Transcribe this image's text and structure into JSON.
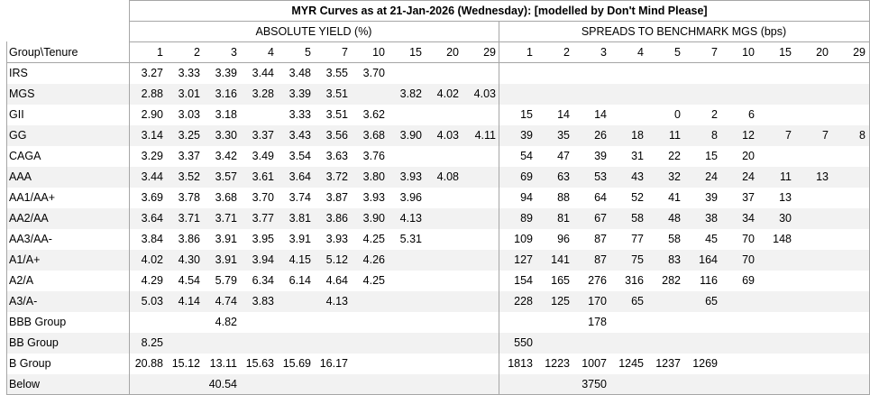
{
  "title": "MYR Curves as at 21-Jan-2026 (Wednesday): [modelled by Don't Mind Please]",
  "corner_label": "Group\\Tenure",
  "section_yield": "ABSOLUTE YIELD (%)",
  "section_spread": "SPREADS TO BENCHMARK MGS (bps)",
  "yield_tenures": [
    "1",
    "2",
    "3",
    "4",
    "5",
    "7",
    "10",
    "15",
    "20",
    "29"
  ],
  "spread_tenures": [
    "1",
    "2",
    "3",
    "4",
    "5",
    "7",
    "10",
    "15",
    "20",
    "29"
  ],
  "rows": [
    {
      "group": "IRS",
      "yield": [
        "3.27",
        "3.33",
        "3.39",
        "3.44",
        "3.48",
        "3.55",
        "3.70",
        "",
        "",
        ""
      ],
      "spread": [
        "",
        "",
        "",
        "",
        "",
        "",
        "",
        "",
        "",
        ""
      ]
    },
    {
      "group": "MGS",
      "yield": [
        "2.88",
        "3.01",
        "3.16",
        "3.28",
        "3.39",
        "3.51",
        "",
        "3.82",
        "4.02",
        "4.03"
      ],
      "spread": [
        "",
        "",
        "",
        "",
        "",
        "",
        "",
        "",
        "",
        ""
      ]
    },
    {
      "group": "GII",
      "yield": [
        "2.90",
        "3.03",
        "3.18",
        "",
        "3.33",
        "3.51",
        "3.62",
        "",
        "",
        ""
      ],
      "spread": [
        "15",
        "14",
        "14",
        "",
        "0",
        "2",
        "6",
        "",
        "",
        ""
      ]
    },
    {
      "group": "GG",
      "yield": [
        "3.14",
        "3.25",
        "3.30",
        "3.37",
        "3.43",
        "3.56",
        "3.68",
        "3.90",
        "4.03",
        "4.11"
      ],
      "spread": [
        "39",
        "35",
        "26",
        "18",
        "11",
        "8",
        "12",
        "7",
        "7",
        "8"
      ]
    },
    {
      "group": "CAGA",
      "yield": [
        "3.29",
        "3.37",
        "3.42",
        "3.49",
        "3.54",
        "3.63",
        "3.76",
        "",
        "",
        ""
      ],
      "spread": [
        "54",
        "47",
        "39",
        "31",
        "22",
        "15",
        "20",
        "",
        "",
        ""
      ]
    },
    {
      "group": "AAA",
      "yield": [
        "3.44",
        "3.52",
        "3.57",
        "3.61",
        "3.64",
        "3.72",
        "3.80",
        "3.93",
        "4.08",
        ""
      ],
      "spread": [
        "69",
        "63",
        "53",
        "43",
        "32",
        "24",
        "24",
        "11",
        "13",
        ""
      ]
    },
    {
      "group": "AA1/AA+",
      "yield": [
        "3.69",
        "3.78",
        "3.68",
        "3.70",
        "3.74",
        "3.87",
        "3.93",
        "3.96",
        "",
        ""
      ],
      "spread": [
        "94",
        "88",
        "64",
        "52",
        "41",
        "39",
        "37",
        "13",
        "",
        ""
      ]
    },
    {
      "group": "AA2/AA",
      "yield": [
        "3.64",
        "3.71",
        "3.71",
        "3.77",
        "3.81",
        "3.86",
        "3.90",
        "4.13",
        "",
        ""
      ],
      "spread": [
        "89",
        "81",
        "67",
        "58",
        "48",
        "38",
        "34",
        "30",
        "",
        ""
      ]
    },
    {
      "group": "AA3/AA-",
      "yield": [
        "3.84",
        "3.86",
        "3.91",
        "3.95",
        "3.91",
        "3.93",
        "4.25",
        "5.31",
        "",
        ""
      ],
      "spread": [
        "109",
        "96",
        "87",
        "77",
        "58",
        "45",
        "70",
        "148",
        "",
        ""
      ]
    },
    {
      "group": "A1/A+",
      "yield": [
        "4.02",
        "4.30",
        "3.91",
        "3.94",
        "4.15",
        "5.12",
        "4.26",
        "",
        "",
        ""
      ],
      "spread": [
        "127",
        "141",
        "87",
        "75",
        "83",
        "164",
        "70",
        "",
        "",
        ""
      ]
    },
    {
      "group": "A2/A",
      "yield": [
        "4.29",
        "4.54",
        "5.79",
        "6.34",
        "6.14",
        "4.64",
        "4.25",
        "",
        "",
        ""
      ],
      "spread": [
        "154",
        "165",
        "276",
        "316",
        "282",
        "116",
        "69",
        "",
        "",
        ""
      ]
    },
    {
      "group": "A3/A-",
      "yield": [
        "5.03",
        "4.14",
        "4.74",
        "3.83",
        "",
        "4.13",
        "",
        "",
        "",
        ""
      ],
      "spread": [
        "228",
        "125",
        "170",
        "65",
        "",
        "65",
        "",
        "",
        "",
        ""
      ]
    },
    {
      "group": "BBB Group",
      "yield": [
        "",
        "",
        "4.82",
        "",
        "",
        "",
        "",
        "",
        "",
        ""
      ],
      "spread": [
        "",
        "",
        "178",
        "",
        "",
        "",
        "",
        "",
        "",
        ""
      ]
    },
    {
      "group": "BB Group",
      "yield": [
        "8.25",
        "",
        "",
        "",
        "",
        "",
        "",
        "",
        "",
        ""
      ],
      "spread": [
        "550",
        "",
        "",
        "",
        "",
        "",
        "",
        "",
        "",
        ""
      ]
    },
    {
      "group": "B Group",
      "yield": [
        "20.88",
        "15.12",
        "13.11",
        "15.63",
        "15.69",
        "16.17",
        "",
        "",
        "",
        ""
      ],
      "spread": [
        "1813",
        "1223",
        "1007",
        "1245",
        "1237",
        "1269",
        "",
        "",
        "",
        ""
      ]
    },
    {
      "group": "Below",
      "yield": [
        "",
        "",
        "40.54",
        "",
        "",
        "",
        "",
        "",
        "",
        ""
      ],
      "spread": [
        "",
        "",
        "3750",
        "",
        "",
        "",
        "",
        "",
        "",
        ""
      ]
    }
  ]
}
